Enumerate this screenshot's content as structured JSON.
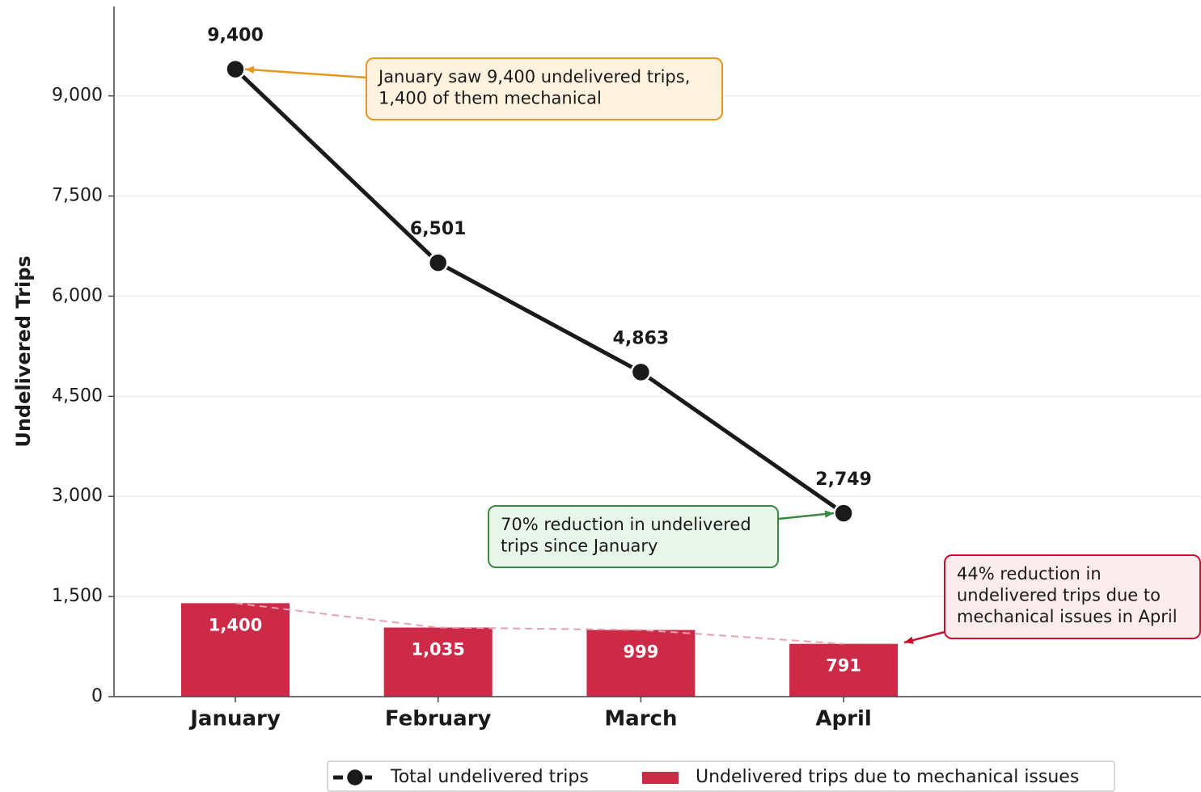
{
  "chart_data": {
    "type": "bar-line",
    "y_label": "Undelivered Trips",
    "categories": [
      "January",
      "February",
      "March",
      "April"
    ],
    "series": [
      {
        "name": "Total undelivered trips",
        "type": "line",
        "color": "#1a1a1a",
        "values": [
          9400,
          6501,
          4863,
          2749
        ],
        "value_labels": [
          "9,400",
          "6,501",
          "4,863",
          "2,749"
        ]
      },
      {
        "name": "Undelivered trips due to mechanical issues",
        "type": "bar",
        "color": "#cc2a47",
        "values": [
          1400,
          1035,
          999,
          791
        ],
        "value_labels": [
          "1,400",
          "1,035",
          "999",
          "791"
        ]
      }
    ],
    "ylim": [
      0,
      10340
    ],
    "yticks": [
      0,
      {
        "value": 1500,
        "label": "1,500"
      },
      {
        "value": 3000,
        "label": "3,000"
      },
      {
        "value": 4500,
        "label": "4,500"
      },
      {
        "value": 6000,
        "label": "6,000"
      },
      {
        "value": 7500,
        "label": "7,500"
      },
      {
        "value": 9000,
        "label": "9,000"
      }
    ],
    "grid": true,
    "legend": "bottom",
    "annotations": [
      {
        "text": [
          "January saw 9,400 undelivered trips,",
          "1,400 of them mechanical"
        ],
        "color": "#e8961e",
        "fill": "#fff3e0"
      },
      {
        "text": [
          "70% reduction in undelivered",
          "trips since January"
        ],
        "color": "#3a8a3f",
        "fill": "#e8f5e9"
      },
      {
        "text": [
          "44% reduction in",
          "undelivered trips due to",
          "mechanical issues in April"
        ],
        "color": "#c8102e",
        "fill": "#fdecee"
      }
    ]
  }
}
